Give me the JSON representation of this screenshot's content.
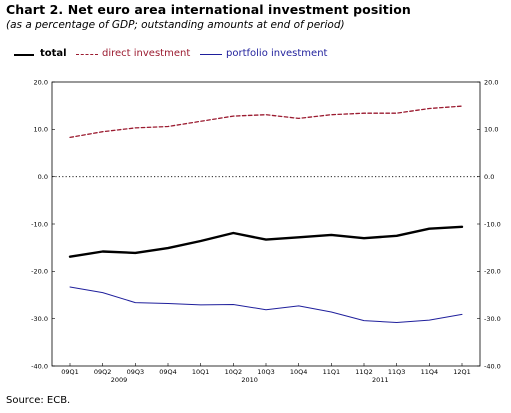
{
  "title": "Chart 2. Net euro area international investment position",
  "subtitle": "(as a percentage of GDP; outstanding amounts at end of period)",
  "source": "Source: ECB.",
  "legend": [
    {
      "label": "total",
      "color": "#000000",
      "style": "solid-thick"
    },
    {
      "label": "direct investment",
      "color": "#9b1b30",
      "style": "dashed"
    },
    {
      "label": "portfolio investment",
      "color": "#1f1f9c",
      "style": "solid"
    }
  ],
  "chart_data": {
    "type": "line",
    "title": "Chart 2. Net euro area international investment position",
    "subtitle": "(as a percentage of GDP; outstanding amounts at end of period)",
    "categories": [
      "09Q1",
      "09Q2",
      "09Q3",
      "09Q4",
      "10Q1",
      "10Q2",
      "10Q3",
      "10Q4",
      "11Q1",
      "11Q2",
      "11Q3",
      "11Q4",
      "12Q1"
    ],
    "year_labels": [
      {
        "label": "2009",
        "category": "09Q2"
      },
      {
        "label": "2010",
        "category": "10Q2"
      },
      {
        "label": "2011",
        "category": "11Q2"
      }
    ],
    "ylim": [
      -40,
      20
    ],
    "yticks": [
      "20.0",
      "10.0",
      "0.0",
      "-10.0",
      "-20.0",
      "-30.0",
      "-40.0"
    ],
    "ytick_values": [
      20,
      10,
      0,
      -10,
      -20,
      -30,
      -40
    ],
    "reference_line": 0,
    "series": [
      {
        "name": "total",
        "color": "#000000",
        "values": [
          -16.9,
          -15.8,
          -16.1,
          -15.1,
          -13.6,
          -11.9,
          -13.3,
          -12.8,
          -12.3,
          -13.0,
          -12.5,
          -11.0,
          -10.6
        ]
      },
      {
        "name": "direct investment",
        "color": "#9b1b30",
        "values": [
          8.3,
          9.5,
          10.3,
          10.6,
          11.7,
          12.8,
          13.1,
          12.3,
          13.1,
          13.4,
          13.4,
          14.4,
          14.9
        ]
      },
      {
        "name": "portfolio investment",
        "color": "#1f1f9c",
        "values": [
          -23.3,
          -24.5,
          -26.6,
          -26.8,
          -27.1,
          -27.0,
          -28.1,
          -27.3,
          -28.6,
          -30.4,
          -30.8,
          -30.3,
          -29.1
        ]
      }
    ]
  }
}
